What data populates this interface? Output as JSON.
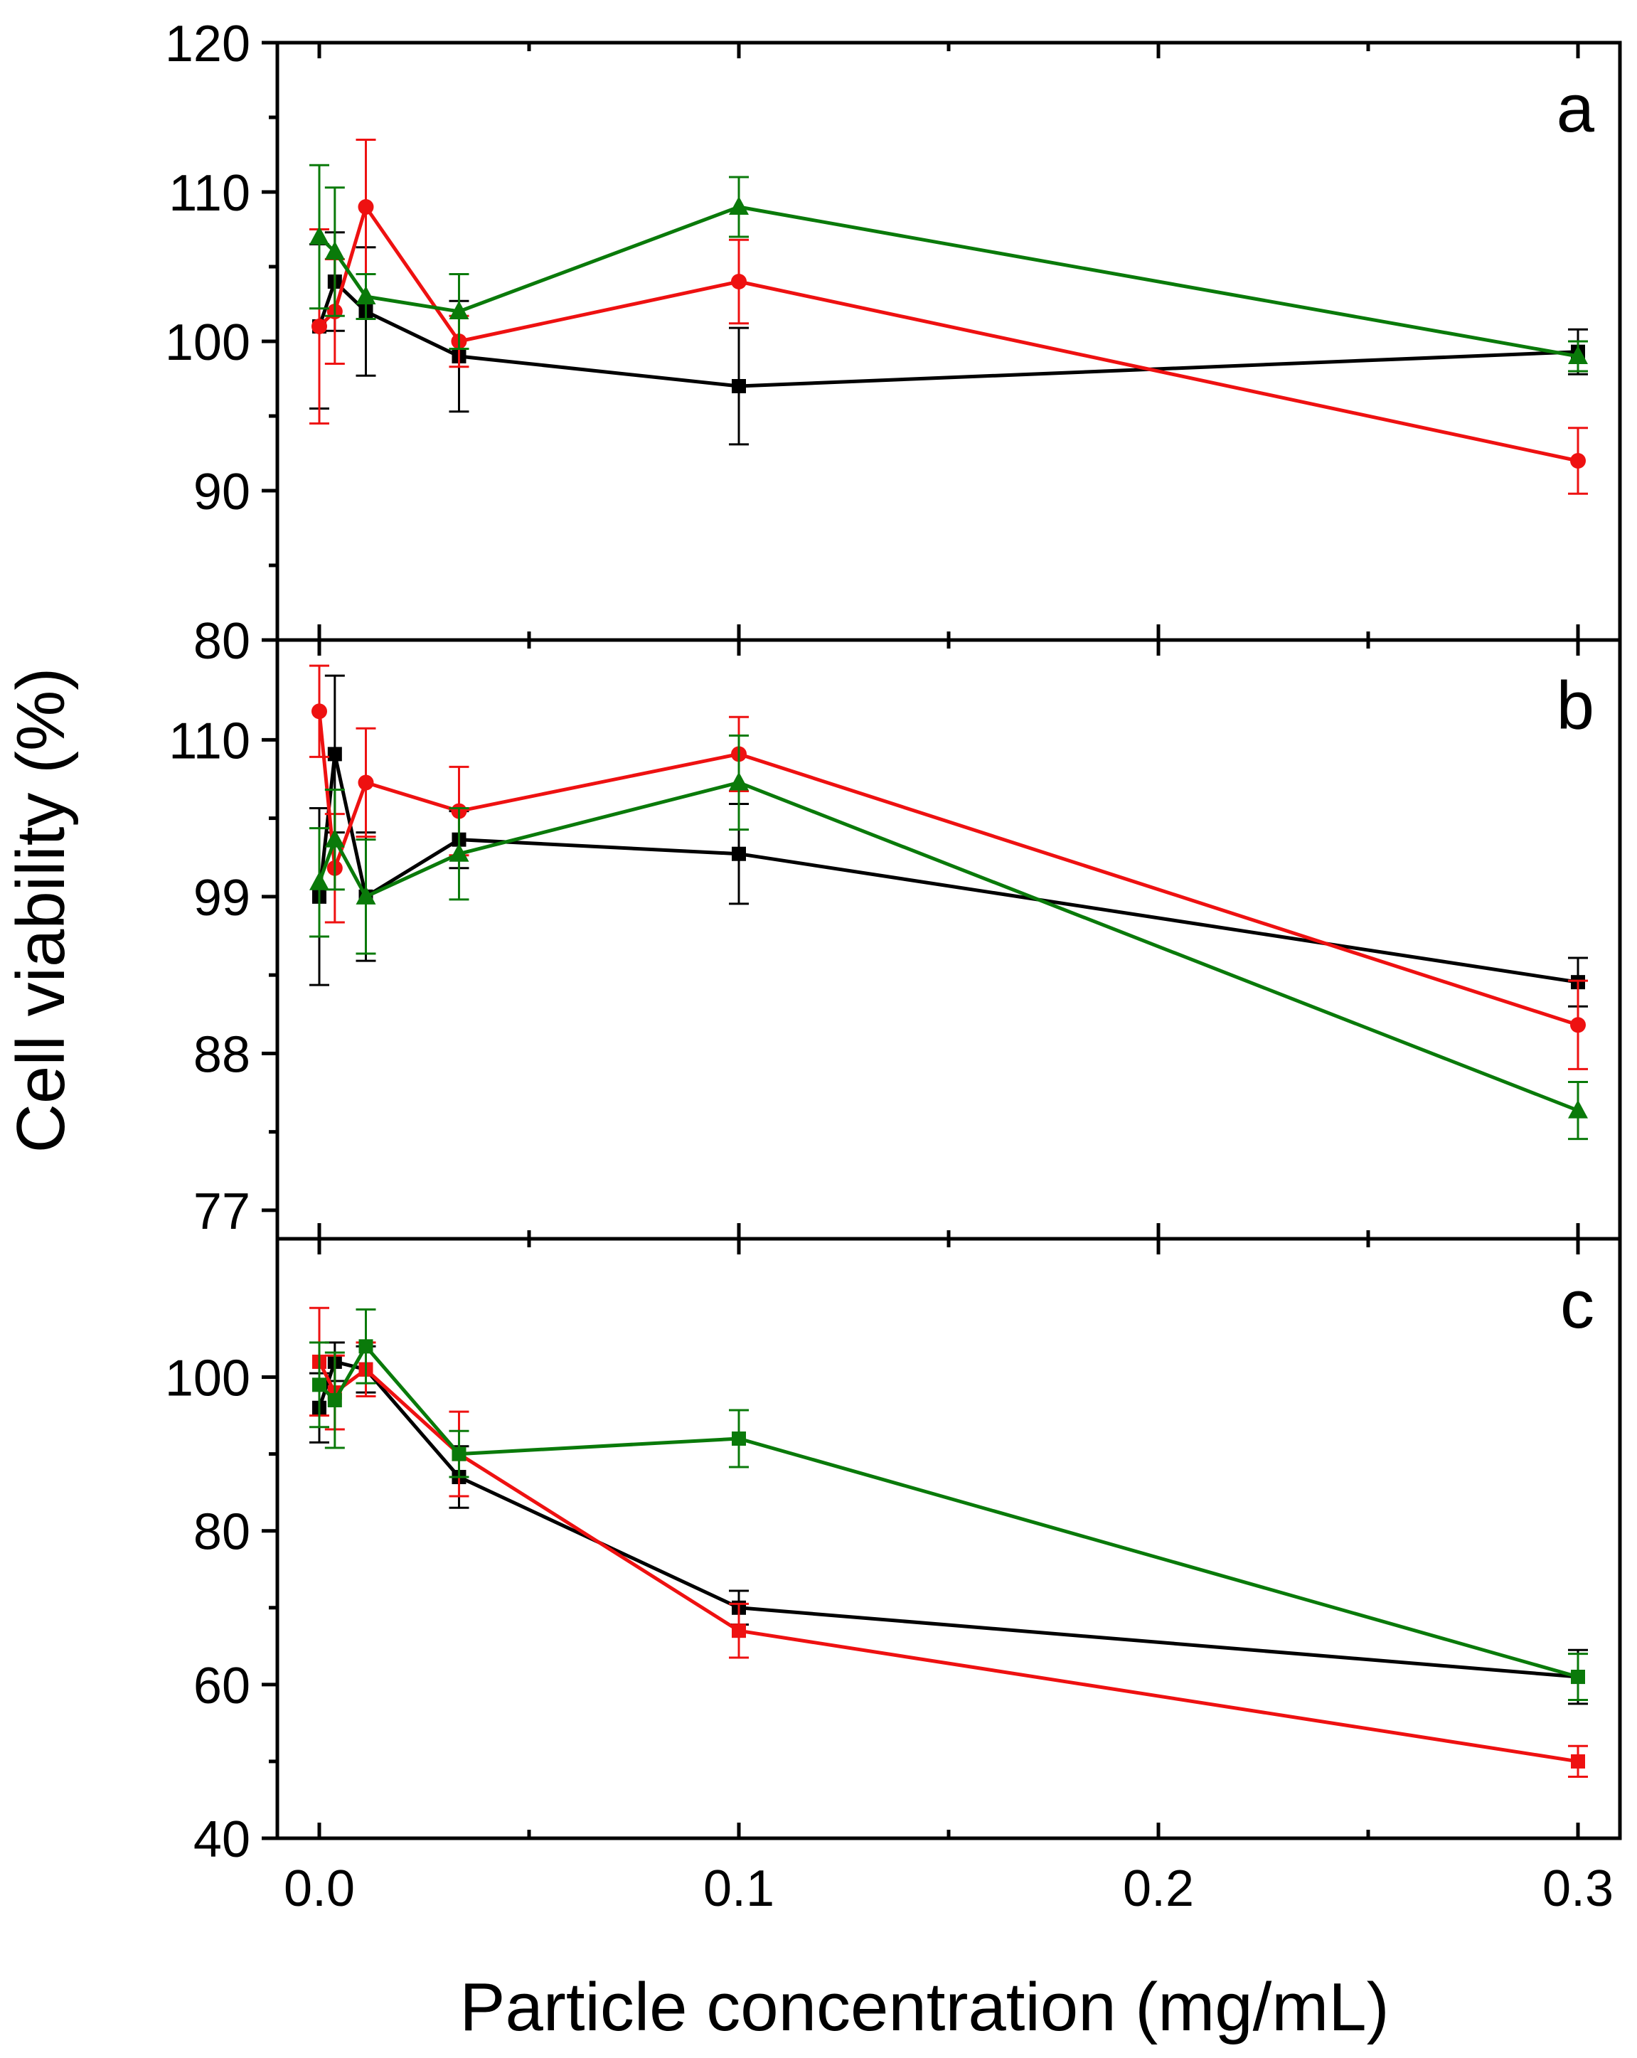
{
  "chart_data": {
    "type": "line",
    "xlabel": "Particle concentration (mg/mL)",
    "ylabel": "Cell viability (%)",
    "x_ticks": [
      "0.0",
      "0.1",
      "0.2",
      "0.3"
    ],
    "x_tick_values": [
      0.0,
      0.1,
      0.2,
      0.3
    ],
    "xlim": [
      -0.01,
      0.31
    ],
    "colors": {
      "black": "#000000",
      "red": "#ee1111",
      "green": "#0a7a0a"
    },
    "panels": [
      {
        "label": "a",
        "ylim": [
          80,
          120
        ],
        "y_ticks": [
          "80",
          "90",
          "100",
          "110",
          "120"
        ],
        "y_tick_values": [
          80,
          90,
          100,
          110,
          120
        ],
        "series": [
          {
            "color": "black",
            "marker": "square",
            "x": [
              0.0,
              0.0037,
              0.0111,
              0.0333,
              0.1,
              0.3
            ],
            "y": [
              101,
              104,
              102,
              99,
              97,
              99.3
            ],
            "err": [
              5.5,
              3.3,
              4.3,
              3.7,
              3.9,
              1.5
            ]
          },
          {
            "color": "red",
            "marker": "circle",
            "x": [
              0.0,
              0.0037,
              0.0111,
              0.0333,
              0.1,
              0.3
            ],
            "y": [
              101,
              102,
              109,
              100,
              104,
              92
            ],
            "err": [
              6.5,
              3.5,
              4.5,
              1.7,
              2.8,
              2.2
            ]
          },
          {
            "color": "green",
            "marker": "triangle",
            "x": [
              0.0,
              0.0037,
              0.0111,
              0.0333,
              0.1,
              0.3
            ],
            "y": [
              107,
              106,
              103,
              102,
              109,
              99
            ],
            "err": [
              4.8,
              4.3,
              1.5,
              2.5,
              2.0,
              1.0
            ]
          }
        ]
      },
      {
        "label": "b",
        "ylim": [
          75,
          117
        ],
        "y_ticks": [
          "77",
          "88",
          "99",
          "110"
        ],
        "y_tick_values": [
          77,
          88,
          99,
          110
        ],
        "series": [
          {
            "color": "black",
            "marker": "square",
            "x": [
              0.0,
              0.0037,
              0.0111,
              0.0333,
              0.1,
              0.3
            ],
            "y": [
              99,
              109,
              99,
              103,
              102,
              93
            ],
            "err": [
              6.2,
              5.5,
              4.5,
              2.0,
              3.5,
              1.7
            ]
          },
          {
            "color": "red",
            "marker": "circle",
            "x": [
              0.0,
              0.0037,
              0.0111,
              0.0333,
              0.1,
              0.3
            ],
            "y": [
              112,
              101,
              107,
              105,
              109,
              90
            ],
            "err": [
              3.2,
              3.8,
              3.8,
              3.1,
              2.6,
              3.1
            ]
          },
          {
            "color": "green",
            "marker": "triangle",
            "x": [
              0.0,
              0.0037,
              0.0111,
              0.0333,
              0.1,
              0.3
            ],
            "y": [
              100,
              103,
              99,
              102,
              107,
              84
            ],
            "err": [
              3.8,
              3.5,
              4.0,
              3.2,
              3.3,
              2.0
            ]
          }
        ]
      },
      {
        "label": "c",
        "ylim": [
          40,
          118
        ],
        "y_ticks": [
          "40",
          "60",
          "80",
          "100"
        ],
        "y_tick_values": [
          40,
          60,
          80,
          100
        ],
        "series": [
          {
            "color": "black",
            "marker": "square",
            "x": [
              0.0,
              0.0037,
              0.0111,
              0.0333,
              0.1,
              0.3
            ],
            "y": [
              96,
              102,
              101,
              87,
              70,
              61
            ],
            "err": [
              4.5,
              2.5,
              3.0,
              4.0,
              2.2,
              3.5
            ]
          },
          {
            "color": "red",
            "marker": "square",
            "x": [
              0.0,
              0.0037,
              0.0111,
              0.0333,
              0.1,
              0.3
            ],
            "y": [
              102,
              98,
              101,
              90,
              67,
              50
            ],
            "err": [
              7.0,
              4.8,
              3.5,
              5.5,
              3.5,
              2.0
            ]
          },
          {
            "color": "green",
            "marker": "square",
            "x": [
              0.0,
              0.0037,
              0.0111,
              0.0333,
              0.1,
              0.3
            ],
            "y": [
              99,
              97,
              104,
              90,
              92,
              61
            ],
            "err": [
              5.5,
              6.2,
              4.8,
              3.0,
              3.7,
              3.0
            ]
          }
        ]
      }
    ]
  }
}
